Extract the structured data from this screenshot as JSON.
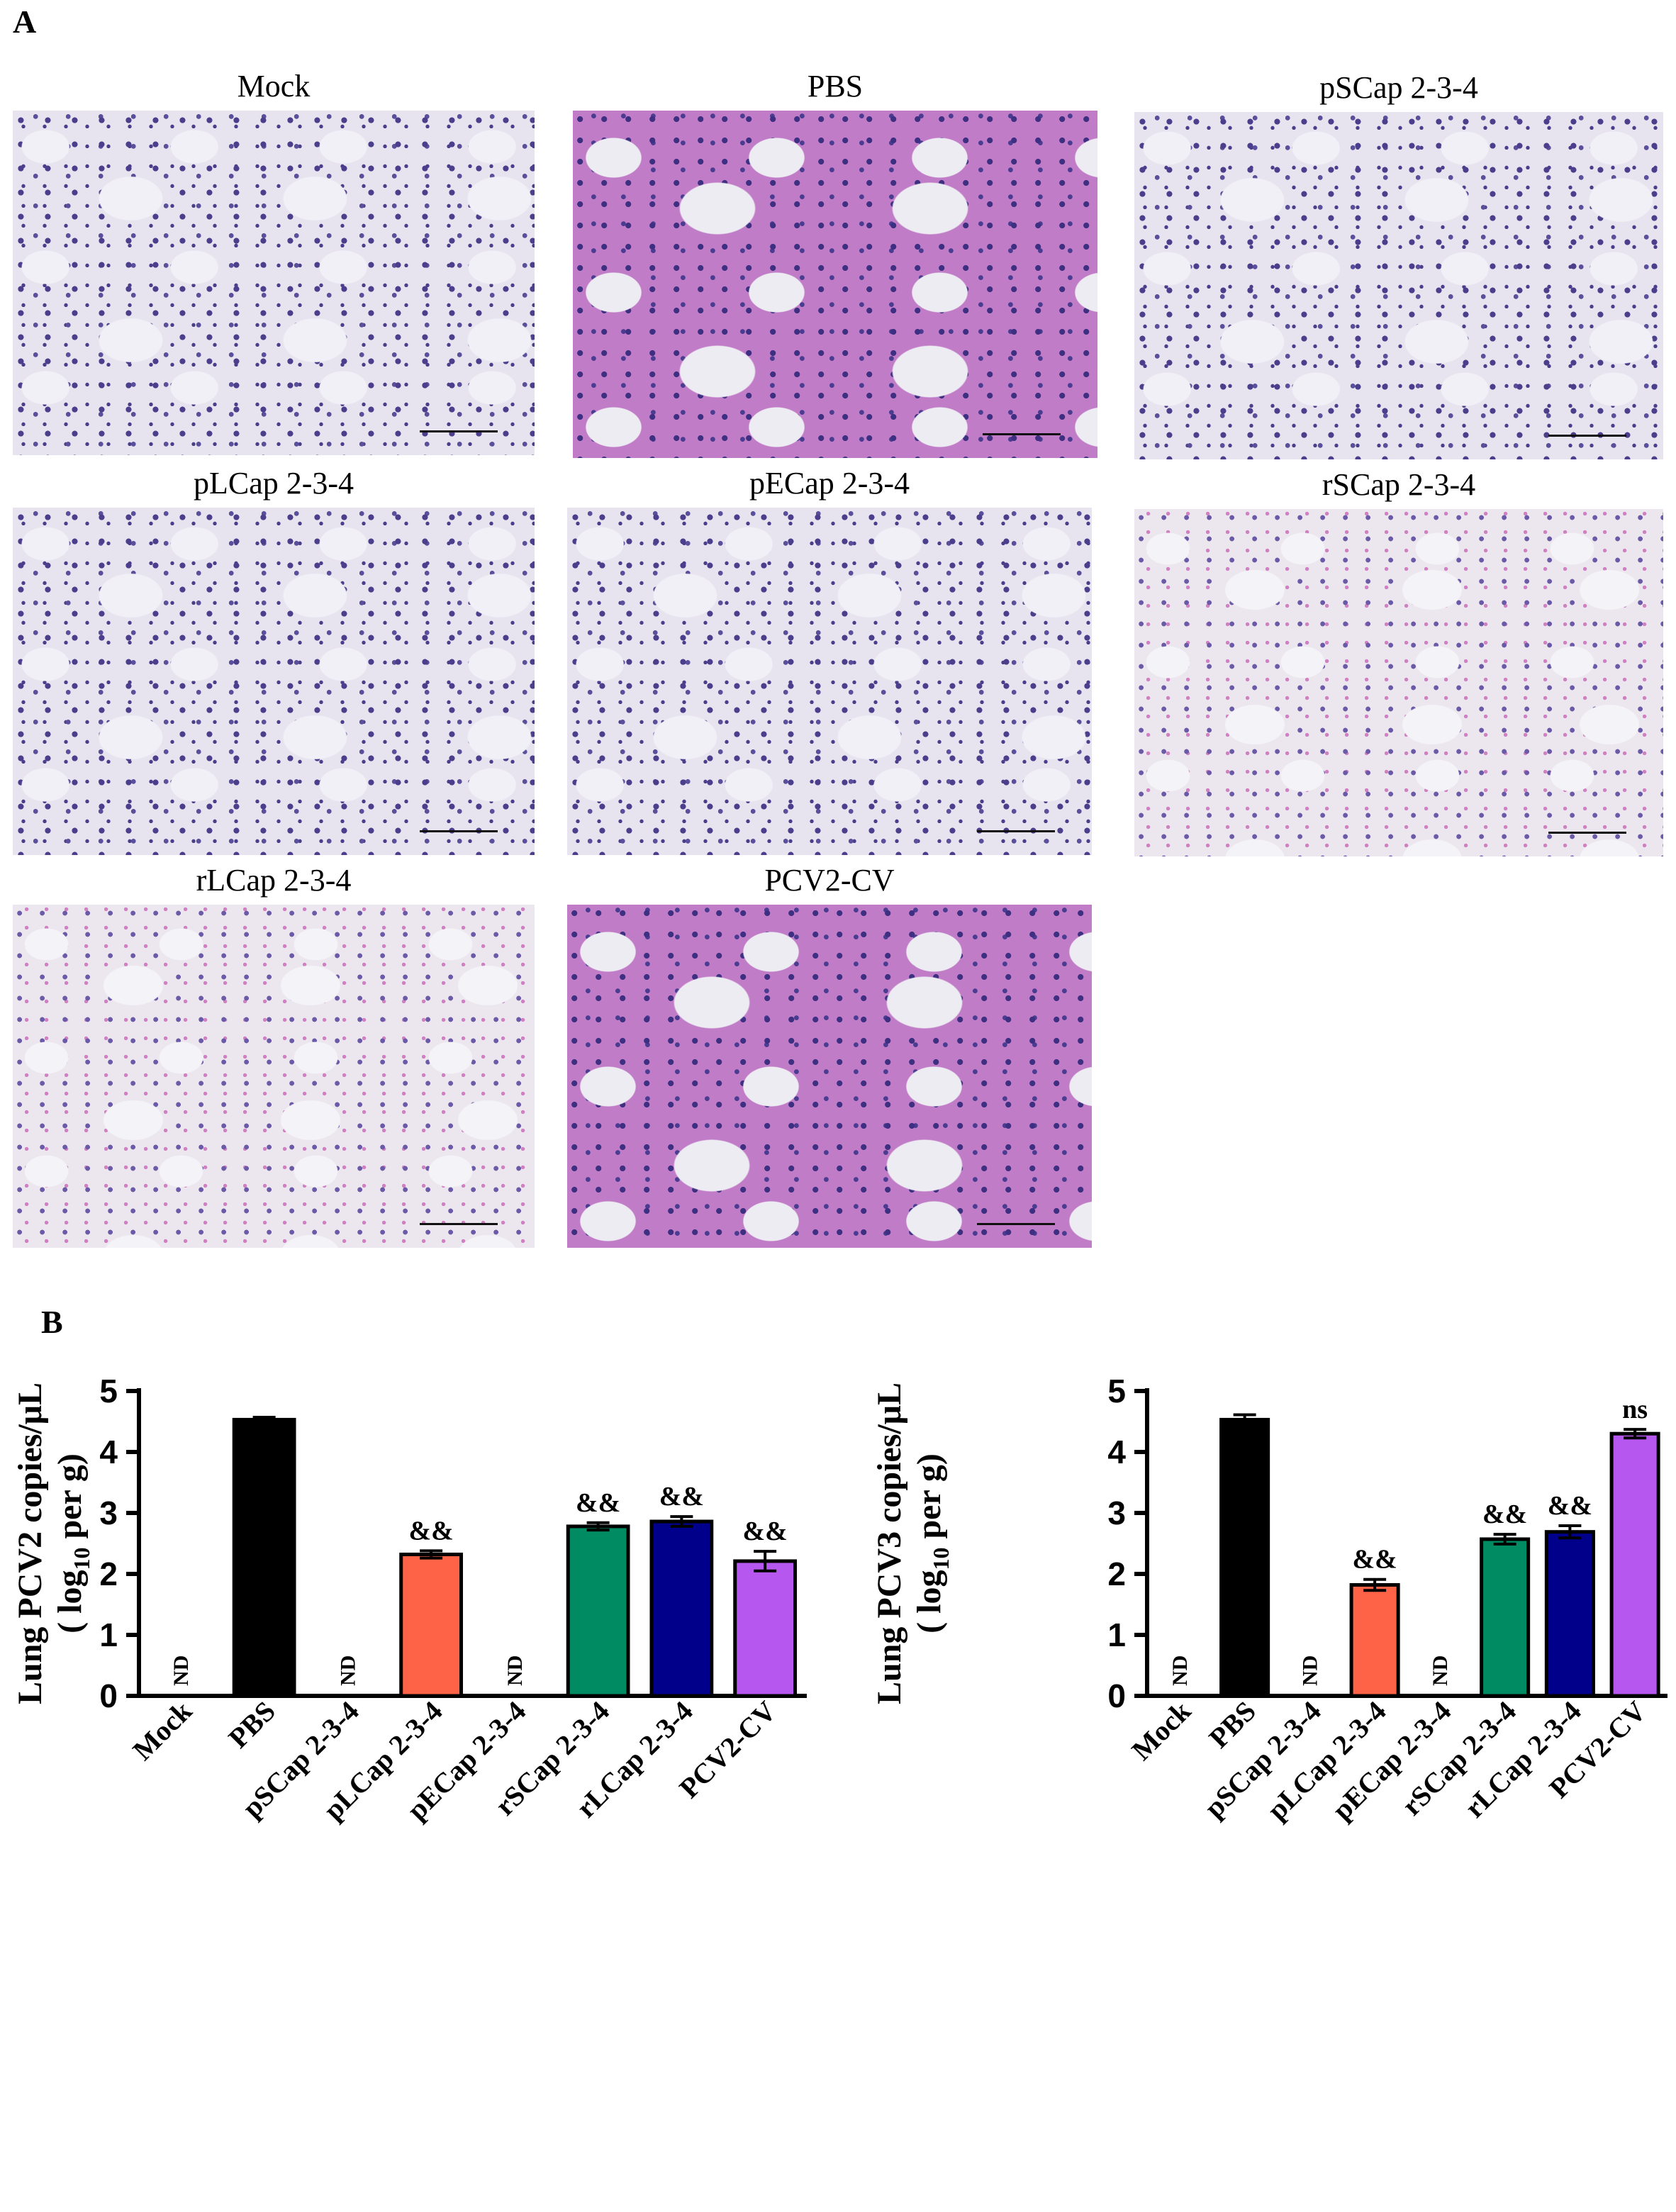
{
  "panel_a": {
    "letter": "A",
    "images": [
      {
        "label": "Mock",
        "style": "purple"
      },
      {
        "label": "PBS",
        "style": "pink"
      },
      {
        "label": "pSCap 2-3-4",
        "style": "purple"
      },
      {
        "label": "pLCap 2-3-4",
        "style": "purple"
      },
      {
        "label": "pECap 2-3-4",
        "style": "purple"
      },
      {
        "label": "rSCap 2-3-4",
        "style": "light"
      },
      {
        "label": "rLCap 2-3-4",
        "style": "light"
      },
      {
        "label": "PCV2-CV",
        "style": "pink"
      }
    ]
  },
  "panel_b": {
    "letter": "B"
  },
  "chart_data": [
    {
      "type": "bar",
      "ylabel_line1": "Lung PCV2 copies/μL",
      "ylabel_line2_pre": "( log",
      "ylabel_line2_sub": "10",
      "ylabel_line2_post": " per g)",
      "ylim": [
        0,
        5
      ],
      "yticks": [
        0,
        1,
        2,
        3,
        4,
        5
      ],
      "categories": [
        "Mock",
        "PBS",
        "pSCap 2-3-4",
        "pLCap 2-3-4",
        "pECap 2-3-4",
        "rSCap 2-3-4",
        "rLCap 2-3-4",
        "PCV2-CV"
      ],
      "values": [
        0,
        4.53,
        0,
        2.32,
        0,
        2.78,
        2.86,
        2.21
      ],
      "errors": [
        0,
        0.04,
        0,
        0.06,
        0,
        0.06,
        0.08,
        0.16
      ],
      "annotations": [
        "ND",
        "",
        "ND",
        "&&",
        "ND",
        "&&",
        "&&",
        "&&"
      ],
      "colors": [
        "#000000",
        "#000000",
        "#000000",
        "#ff6347",
        "#000000",
        "#008b62",
        "#00008b",
        "#b657f0"
      ]
    },
    {
      "type": "bar",
      "ylabel_line1": "Lung PCV3 copies/μL",
      "ylabel_line2_pre": "( log",
      "ylabel_line2_sub": "10",
      "ylabel_line2_post": " per g)",
      "ylim": [
        0,
        5
      ],
      "yticks": [
        0,
        1,
        2,
        3,
        4,
        5
      ],
      "categories": [
        "Mock",
        "PBS",
        "pSCap 2-3-4",
        "pLCap 2-3-4",
        "pECap 2-3-4",
        "rSCap 2-3-4",
        "rLCap 2-3-4",
        "PCV2-CV"
      ],
      "values": [
        0,
        4.53,
        0,
        1.82,
        0,
        2.57,
        2.69,
        4.3
      ],
      "errors": [
        0,
        0.08,
        0,
        0.09,
        0,
        0.08,
        0.1,
        0.07
      ],
      "annotations": [
        "ND",
        "",
        "ND",
        "&&",
        "ND",
        "&&",
        "&&",
        "ns"
      ],
      "colors": [
        "#000000",
        "#000000",
        "#000000",
        "#ff6347",
        "#000000",
        "#008b62",
        "#00008b",
        "#b657f0"
      ]
    }
  ]
}
